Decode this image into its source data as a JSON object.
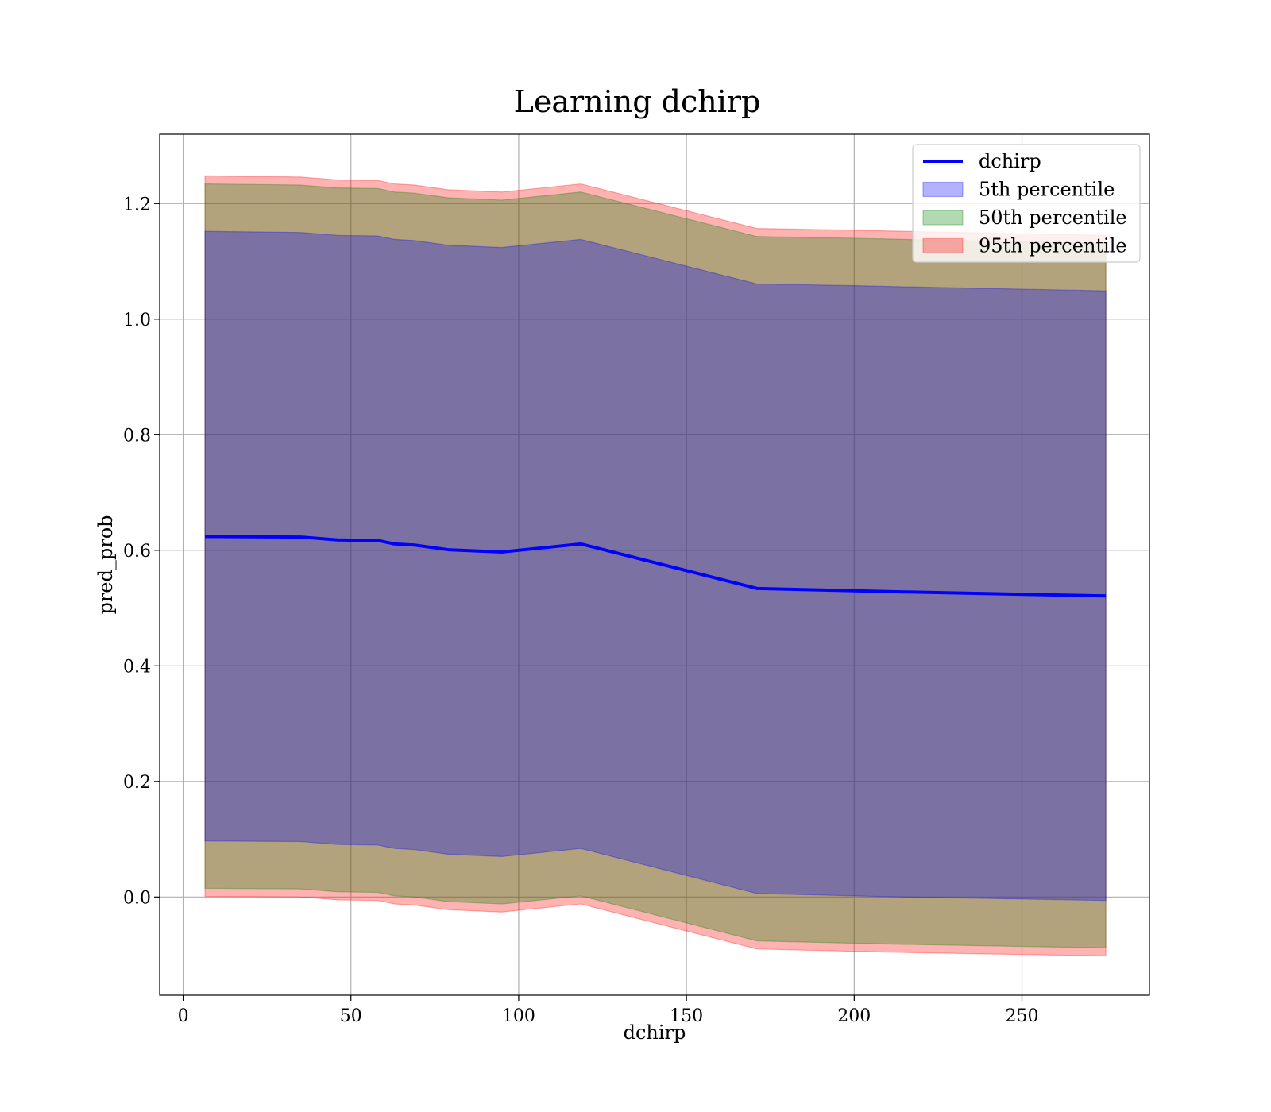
{
  "chart_data": {
    "type": "area",
    "title": "Learning dchirp",
    "xlabel": "dchirp",
    "ylabel": "pred_prob",
    "xlim": [
      -7,
      288
    ],
    "ylim": [
      -0.17,
      1.32
    ],
    "x_ticks": [
      0,
      50,
      100,
      150,
      200,
      250
    ],
    "x_tick_labels": [
      "0",
      "50",
      "100",
      "150",
      "200",
      "250"
    ],
    "y_ticks": [
      0.0,
      0.2,
      0.4,
      0.6,
      0.8,
      1.0,
      1.2
    ],
    "y_tick_labels": [
      "0.0",
      "0.2",
      "0.4",
      "0.6",
      "0.8",
      "1.0",
      "1.2"
    ],
    "grid": true,
    "legend_position": "top-right",
    "x": [
      6.5,
      35,
      46,
      58,
      63,
      69,
      79,
      95,
      118.5,
      171,
      200,
      215,
      275
    ],
    "series": [
      {
        "name": "dchirp",
        "kind": "line",
        "color": "#0000ff",
        "values": [
          0.624,
          0.623,
          0.618,
          0.617,
          0.611,
          0.609,
          0.601,
          0.597,
          0.611,
          0.534,
          0.53,
          0.528,
          0.521
        ]
      },
      {
        "name": "5th percentile",
        "kind": "band",
        "color": "#0000ff",
        "lower": [
          0.097,
          0.096,
          0.091,
          0.09,
          0.084,
          0.082,
          0.074,
          0.07,
          0.084,
          0.006,
          0.002,
          0.0,
          -0.006
        ],
        "upper": [
          1.152,
          1.15,
          1.145,
          1.144,
          1.138,
          1.136,
          1.128,
          1.124,
          1.138,
          1.061,
          1.058,
          1.056,
          1.049
        ]
      },
      {
        "name": "50th percentile",
        "kind": "band",
        "color": "#008000",
        "lower": [
          0.015,
          0.014,
          0.009,
          0.008,
          0.002,
          0.0,
          -0.008,
          -0.012,
          0.002,
          -0.076,
          -0.08,
          -0.082,
          -0.088
        ],
        "upper": [
          1.234,
          1.232,
          1.227,
          1.226,
          1.22,
          1.218,
          1.21,
          1.206,
          1.22,
          1.143,
          1.14,
          1.138,
          1.131
        ]
      },
      {
        "name": "95th percentile",
        "kind": "band",
        "color": "#ff0000",
        "lower": [
          0.001,
          0.0,
          -0.005,
          -0.006,
          -0.012,
          -0.014,
          -0.022,
          -0.026,
          -0.012,
          -0.09,
          -0.094,
          -0.096,
          -0.102
        ],
        "upper": [
          1.248,
          1.246,
          1.241,
          1.24,
          1.234,
          1.232,
          1.224,
          1.22,
          1.234,
          1.157,
          1.154,
          1.152,
          1.145
        ]
      }
    ]
  }
}
